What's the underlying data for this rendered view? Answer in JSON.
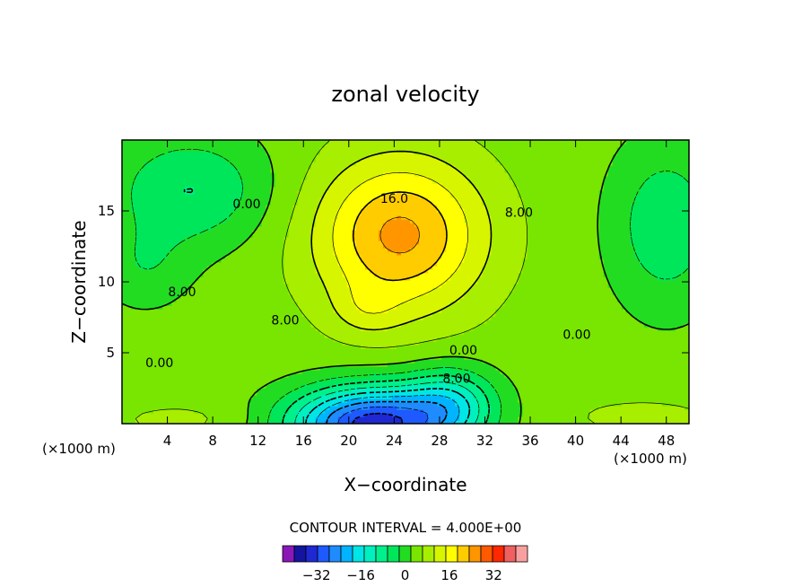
{
  "chart_data": {
    "type": "heatmap",
    "title": "zonal velocity",
    "xlabel": "X−coordinate",
    "ylabel": "Z−coordinate",
    "x_unit_left": "(×1000 m)",
    "x_unit_right": "(×1000 m)",
    "xlim": [
      0,
      50
    ],
    "ylim": [
      0,
      20
    ],
    "x_ticks": [
      4,
      8,
      12,
      16,
      20,
      24,
      28,
      32,
      36,
      40,
      44,
      48
    ],
    "y_ticks": [
      5,
      10,
      15
    ],
    "contour_interval_text": "CONTOUR INTERVAL = 4.000E+00",
    "contour_interval": 4,
    "contour_labels": [
      {
        "text": "0.00",
        "x": 11,
        "y": 15.5
      },
      {
        "text": "16.0",
        "x": 24,
        "y": 15.9
      },
      {
        "text": "8.00",
        "x": 35,
        "y": 14.9
      },
      {
        "text": "8.00",
        "x": 5.3,
        "y": 9.3
      },
      {
        "text": "8.00",
        "x": 14.4,
        "y": 7.3
      },
      {
        "text": "0.00",
        "x": 40.1,
        "y": 6.3
      },
      {
        "text": "0.00",
        "x": 3.3,
        "y": 4.3
      },
      {
        "text": "0.00",
        "x": 30.1,
        "y": 5.2
      },
      {
        "text": "8.00",
        "x": 29.5,
        "y": 3.2
      }
    ],
    "colorbar": {
      "levels": [
        -40,
        -36,
        -32,
        -28,
        -24,
        -20,
        -16,
        -12,
        -8,
        -4,
        0,
        4,
        8,
        12,
        16,
        20,
        24,
        28,
        32,
        36,
        40
      ],
      "colors": [
        "#8a18b8",
        "#1414a0",
        "#1f28d2",
        "#1e5aff",
        "#1e8cff",
        "#00b4ff",
        "#00e6e6",
        "#00f0c0",
        "#00f08c",
        "#00e65a",
        "#22dc22",
        "#78e600",
        "#a8ee00",
        "#d8f500",
        "#ffff00",
        "#ffcc00",
        "#ff9600",
        "#ff5a00",
        "#ff2800",
        "#f06060",
        "#f8a0a0"
      ],
      "tick_labels": [
        {
          "value": -32,
          "text": "−32"
        },
        {
          "value": -16,
          "text": "−16"
        },
        {
          "value": 0,
          "text": "0"
        },
        {
          "value": 16,
          "text": "16"
        },
        {
          "value": 32,
          "text": "32"
        }
      ]
    }
  }
}
